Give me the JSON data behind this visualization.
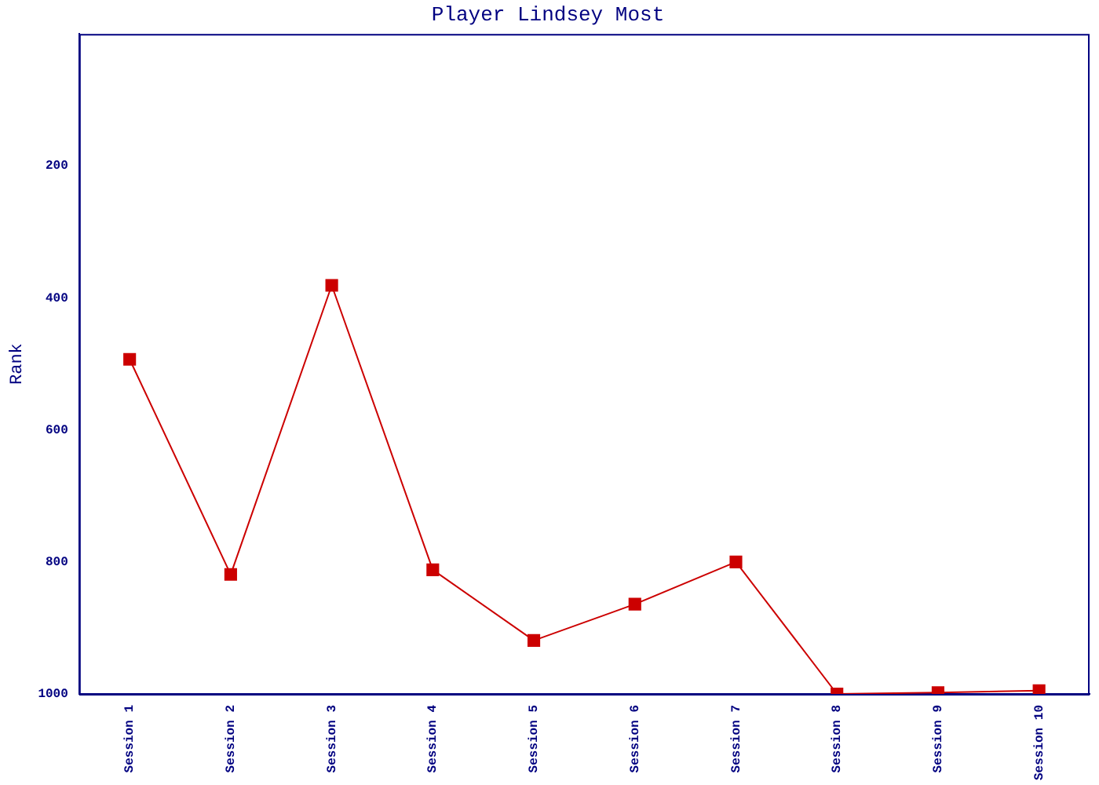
{
  "chart_data": {
    "type": "line",
    "title": "Player Lindsey Most",
    "ylabel": "Rank",
    "categories": [
      "Session 1",
      "Session 2",
      "Session 3",
      "Session 4",
      "Session 5",
      "Session 6",
      "Session 7",
      "Session 8",
      "Session 9",
      "Session 10"
    ],
    "series": [
      {
        "color": "#cc0000",
        "values": [
          493,
          819,
          381,
          812,
          919,
          864,
          800,
          1000,
          998,
          995
        ]
      }
    ],
    "ylim": [
      1000,
      0
    ],
    "yticks": [
      200,
      400,
      600,
      800,
      1000
    ],
    "grid": false,
    "legend": false,
    "marker": "square",
    "line_style": "solid"
  }
}
